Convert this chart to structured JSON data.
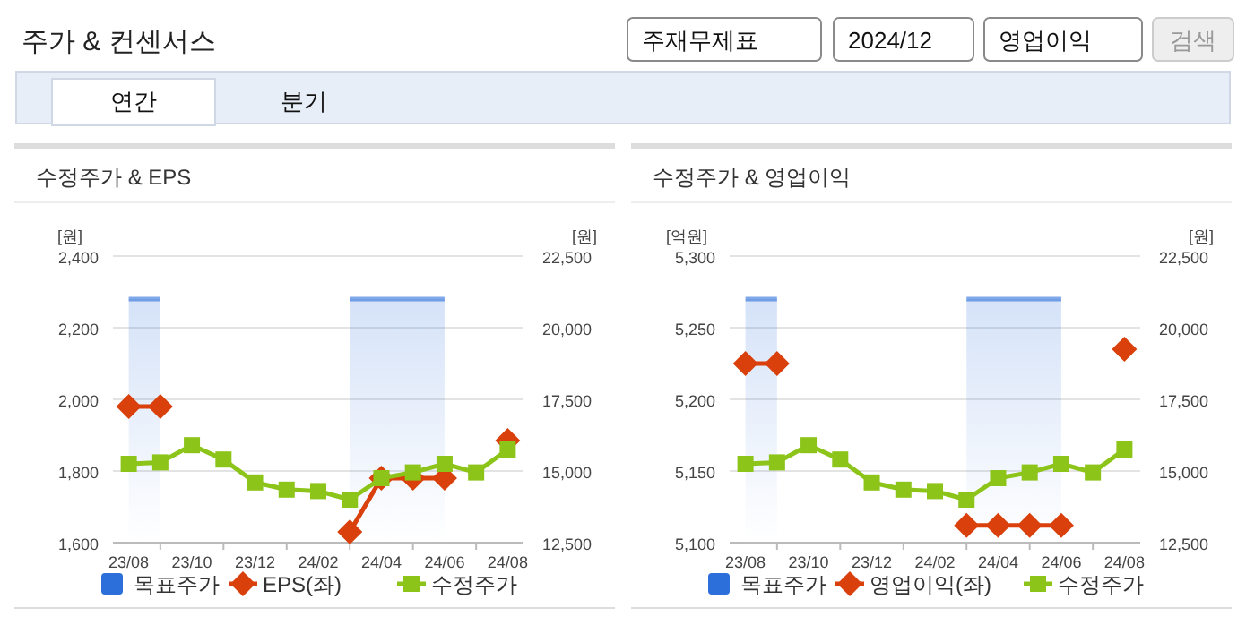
{
  "chart_data": [
    {
      "type": "other",
      "title": "주가 & 컨센서스",
      "annotations": [
        "주재무제표",
        "2024/12",
        "영업이익",
        "검색",
        "연간",
        "분기"
      ]
    },
    {
      "type": "line",
      "title": "수정주가 & EPS",
      "ylabel": "[원]",
      "y2label": "[원]",
      "legend": "bottom",
      "grid": "y",
      "categories": [
        "23/08",
        null,
        "23/10",
        null,
        "23/12",
        null,
        "24/02",
        null,
        "24/04",
        null,
        "24/06",
        null,
        "24/08"
      ],
      "ylim": [
        1600,
        2400
      ],
      "yticks": [
        {
          "value": 1600,
          "label": "1,600"
        },
        {
          "value": 1800,
          "label": "1,800"
        },
        {
          "value": 2000,
          "label": "2,000"
        },
        {
          "value": 2200,
          "label": "2,200"
        },
        {
          "value": 2400,
          "label": "2,400"
        }
      ],
      "y2lim": [
        12500,
        22500
      ],
      "y2ticks": [
        {
          "value": 12500,
          "label": "12,500"
        },
        {
          "value": 15000,
          "label": "15,000"
        },
        {
          "value": 17500,
          "label": "17,500"
        },
        {
          "value": 20000,
          "label": "20,000"
        },
        {
          "value": 22500,
          "label": "22,500"
        }
      ],
      "series": [
        {
          "name": "목표주가",
          "type": "area",
          "axis": "y2",
          "color": "#2c6fdb",
          "values": [
            21000,
            21000,
            null,
            null,
            null,
            null,
            null,
            21000,
            21000,
            21000,
            21000,
            null,
            null
          ]
        },
        {
          "name": "EPS(좌)",
          "type": "line",
          "marker": "diamond",
          "color": "#d9400b",
          "values": [
            1980,
            1980,
            null,
            null,
            null,
            null,
            null,
            1630,
            1780,
            1780,
            1780,
            null,
            1885
          ]
        },
        {
          "name": "수정주가",
          "type": "line",
          "marker": "square",
          "axis": "y2",
          "color": "#8cc41a",
          "values": [
            15250,
            15300,
            15900,
            15400,
            14600,
            14350,
            14300,
            14000,
            14750,
            14950,
            15250,
            14950,
            15750
          ]
        }
      ]
    },
    {
      "type": "line",
      "title": "수정주가 & 영업이익",
      "ylabel": "[억원]",
      "y2label": "[원]",
      "legend": "bottom",
      "grid": "y",
      "categories": [
        "23/08",
        null,
        "23/10",
        null,
        "23/12",
        null,
        "24/02",
        null,
        "24/04",
        null,
        "24/06",
        null,
        "24/08"
      ],
      "ylim": [
        5100,
        5300
      ],
      "yticks": [
        {
          "value": 5100,
          "label": "5,100"
        },
        {
          "value": 5150,
          "label": "5,150"
        },
        {
          "value": 5200,
          "label": "5,200"
        },
        {
          "value": 5250,
          "label": "5,250"
        },
        {
          "value": 5300,
          "label": "5,300"
        }
      ],
      "y2lim": [
        12500,
        22500
      ],
      "y2ticks": [
        {
          "value": 12500,
          "label": "12,500"
        },
        {
          "value": 15000,
          "label": "15,000"
        },
        {
          "value": 17500,
          "label": "17,500"
        },
        {
          "value": 20000,
          "label": "20,000"
        },
        {
          "value": 22500,
          "label": "22,500"
        }
      ],
      "series": [
        {
          "name": "목표주가",
          "type": "area",
          "axis": "y2",
          "color": "#2c6fdb",
          "values": [
            21000,
            21000,
            null,
            null,
            null,
            null,
            null,
            21000,
            21000,
            21000,
            21000,
            null,
            null
          ]
        },
        {
          "name": "영업이익(좌)",
          "type": "line",
          "marker": "diamond",
          "color": "#d9400b",
          "values": [
            5225,
            5225,
            null,
            null,
            null,
            null,
            null,
            5112,
            5112,
            5112,
            5112,
            null,
            5235
          ]
        },
        {
          "name": "수정주가",
          "type": "line",
          "marker": "square",
          "axis": "y2",
          "color": "#8cc41a",
          "values": [
            15250,
            15300,
            15900,
            15400,
            14600,
            14350,
            14300,
            14000,
            14750,
            14950,
            15250,
            14950,
            15750
          ]
        }
      ]
    }
  ]
}
